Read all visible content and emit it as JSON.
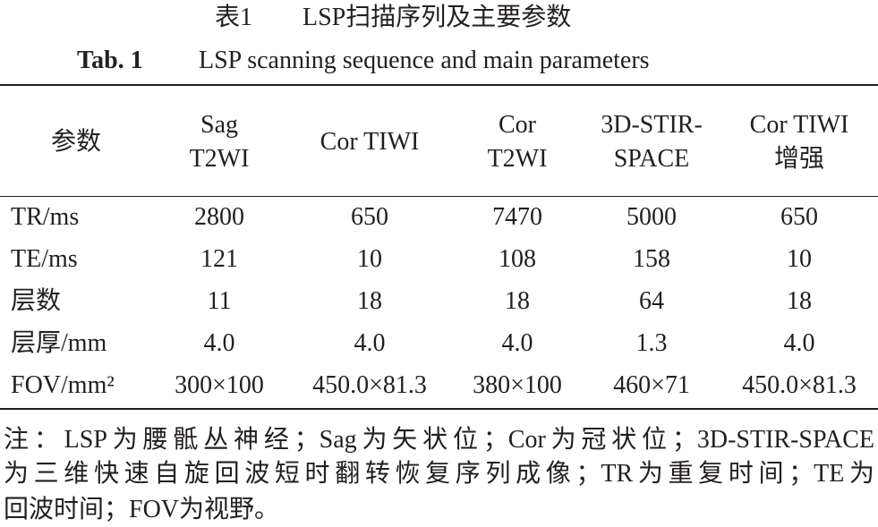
{
  "caption": {
    "label_cn": "表1",
    "title_cn": "LSP扫描序列及主要参数",
    "label_en": "Tab. 1",
    "title_en": "LSP scanning sequence and main parameters"
  },
  "table": {
    "header": [
      [
        "参数"
      ],
      [
        "Sag",
        "T2WI"
      ],
      [
        "Cor TIWI"
      ],
      [
        "Cor",
        "T2WI"
      ],
      [
        "3D-STIR-",
        "SPACE"
      ],
      [
        "Cor TIWI",
        "增强"
      ]
    ],
    "rows": [
      [
        "TR/ms",
        "2800",
        "650",
        "7470",
        "5000",
        "650"
      ],
      [
        "TE/ms",
        "121",
        "10",
        "108",
        "158",
        "10"
      ],
      [
        "层数",
        "11",
        "18",
        "18",
        "64",
        "18"
      ],
      [
        "层厚/mm",
        "4.0",
        "4.0",
        "4.0",
        "1.3",
        "4.0"
      ],
      [
        "FOV/mm²",
        "300×100",
        "450.0×81.3",
        "380×100",
        "460×71",
        "450.0×81.3"
      ]
    ]
  },
  "note": [
    "注：LSP为腰骶丛神经；Sag为矢状位；Cor为冠状位；3D-STIR-SPACE",
    "为三维快速自旋回波短时翻转恢复序列成像；TR为重复时间；TE为",
    "回波时间；FOV为视野。"
  ]
}
